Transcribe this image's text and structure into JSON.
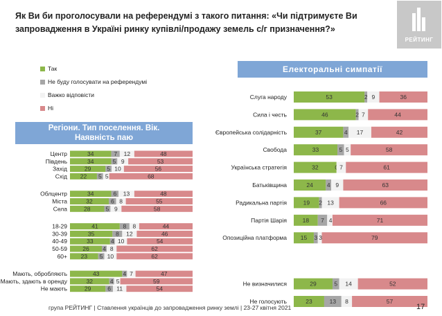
{
  "title": "Як Ви би проголосували на референдумі з такого питання: «Чи підтримуєте Ви запровадження в Україні ринку купівлі/продажу земель с/г призначення?»",
  "logo_text": "РЕЙТИНГ",
  "legend": [
    {
      "label": "Так",
      "color": "#8db74a"
    },
    {
      "label": "Не буду голосувати на референдумі",
      "color": "#a6a6a6"
    },
    {
      "label": "Важко відповісти",
      "color": "#f2f2f2"
    },
    {
      "label": "Ні",
      "color": "#d8898b"
    }
  ],
  "banner_right": "Електоральні симпатії",
  "banner_left_line1": "Регіони. Тип поселення. Вік.",
  "banner_left_line2": "Наявність паю",
  "footer": "група РЕЙТИНГ | Ставлення українців до запровадження ринку землі  | 23-27 квітня 2021",
  "page_number": "17",
  "chart_data": [
    {
      "type": "bar",
      "orientation": "horizontal-stacked-100",
      "series_names": [
        "Так",
        "Не буду голосувати на референдумі",
        "Важко відповісти",
        "Ні"
      ],
      "categories": [
        "Центр",
        "Південь",
        "Захід",
        "Схід",
        "Облцентр",
        "Міста",
        "Села",
        "18-29",
        "30-39",
        "40-49",
        "50-59",
        "60+",
        "Мають, обробляють",
        "Мають, здають в оренду",
        "Не мають"
      ],
      "groups": [
        [
          {
            "label": "Центр",
            "values": [
              34,
              7,
              12,
              48
            ]
          },
          {
            "label": "Південь",
            "values": [
              34,
              5,
              9,
              53
            ]
          },
          {
            "label": "Захід",
            "values": [
              29,
              5,
              10,
              56
            ]
          },
          {
            "label": "Схід",
            "values": [
              22,
              5,
              5,
              68
            ]
          }
        ],
        [
          {
            "label": "Облцентр",
            "values": [
              34,
              6,
              13,
              48
            ]
          },
          {
            "label": "Міста",
            "values": [
              32,
              6,
              8,
              55
            ]
          },
          {
            "label": "Села",
            "values": [
              28,
              5,
              9,
              58
            ]
          }
        ],
        [
          {
            "label": "18-29",
            "values": [
              41,
              8,
              8,
              44
            ]
          },
          {
            "label": "30-39",
            "values": [
              35,
              8,
              12,
              46
            ]
          },
          {
            "label": "40-49",
            "values": [
              33,
              4,
              10,
              54
            ]
          },
          {
            "label": "50-59",
            "values": [
              26,
              4,
              8,
              62
            ]
          },
          {
            "label": "60+",
            "values": [
              23,
              5,
              10,
              62
            ]
          }
        ],
        [
          {
            "label": "Мають, обробляють",
            "values": [
              43,
              4,
              7,
              47
            ]
          },
          {
            "label": "Мають, здають в оренду",
            "values": [
              32,
              4,
              5,
              59
            ]
          },
          {
            "label": "Не мають",
            "values": [
              29,
              6,
              11,
              54
            ]
          }
        ]
      ]
    },
    {
      "type": "bar",
      "orientation": "horizontal-stacked-100",
      "series_names": [
        "Так",
        "Не буду голосувати на референдумі",
        "Важко відповісти",
        "Ні"
      ],
      "categories": [
        "Слуга народу",
        "Сила і честь",
        "Європейська солідарність",
        "Свобода",
        "Українська стратегія",
        "Батьківщина",
        "Радикальна партія",
        "Партія Шарія",
        "Опозиційна платформа",
        "Не визначилися",
        "Не голосують"
      ],
      "groups": [
        [
          {
            "label": "Слуга народу",
            "values": [
              53,
              2,
              9,
              36
            ]
          },
          {
            "label": "Сила і честь",
            "values": [
              46,
              2,
              7,
              44
            ]
          },
          {
            "label": "Європейська солідарність",
            "values": [
              37,
              4,
              17,
              42
            ]
          },
          {
            "label": "Свобода",
            "values": [
              33,
              5,
              5,
              58
            ]
          },
          {
            "label": "Українська стратегія",
            "values": [
              32,
              0,
              7,
              61
            ]
          },
          {
            "label": "Батьківщина",
            "values": [
              24,
              4,
              9,
              63
            ]
          },
          {
            "label": "Радикальна партія",
            "values": [
              19,
              2,
              13,
              66
            ]
          },
          {
            "label": "Партія Шарія",
            "values": [
              18,
              7,
              4,
              71
            ]
          },
          {
            "label": "Опозиційна платформа",
            "values": [
              15,
              3,
              3,
              79
            ]
          }
        ],
        [
          {
            "label": "Не визначилися",
            "values": [
              29,
              5,
              14,
              52
            ]
          },
          {
            "label": "Не голосують",
            "values": [
              23,
              13,
              8,
              57
            ]
          }
        ]
      ]
    }
  ]
}
